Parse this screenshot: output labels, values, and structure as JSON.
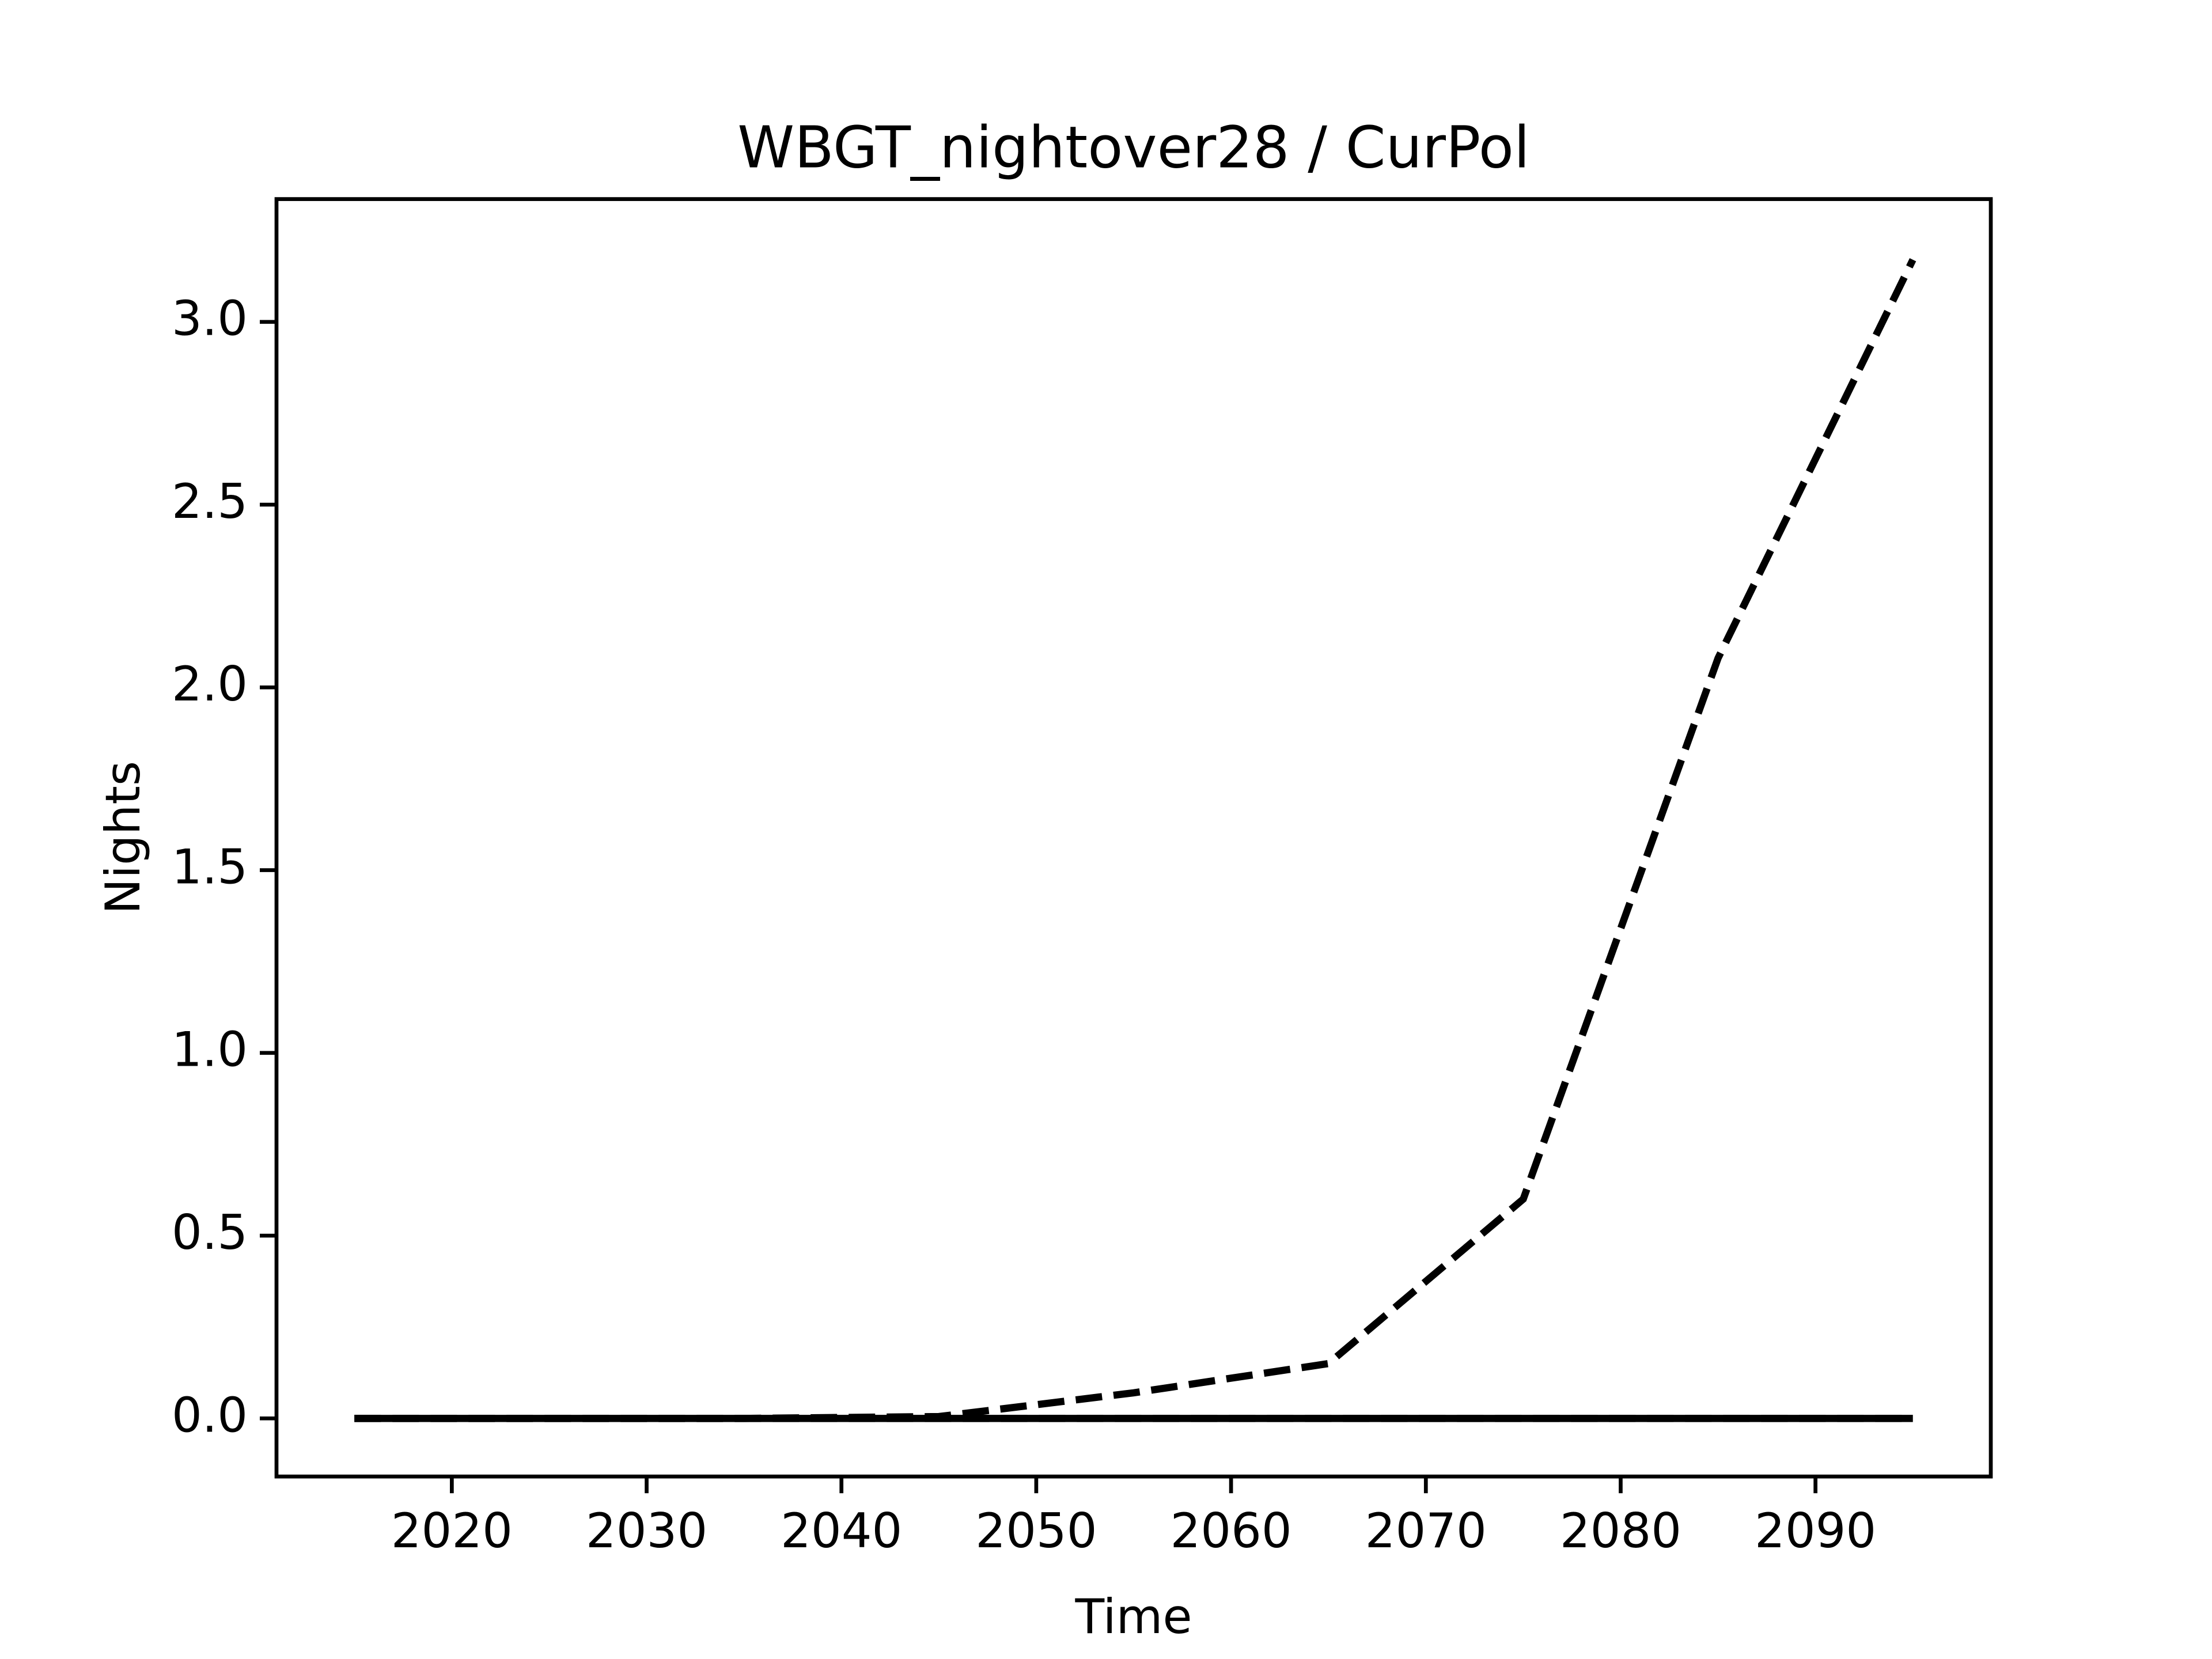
{
  "chart_data": {
    "type": "line",
    "title": "WBGT_nightover28 / CurPol",
    "x_label": "Time",
    "y_label": "Nights",
    "x": [
      2015,
      2025,
      2035,
      2045,
      2055,
      2065,
      2075,
      2085,
      2095
    ],
    "series": [
      {
        "color": "#000000",
        "dash": "dashed",
        "values": [
          0,
          0,
          0,
          0.005,
          0.07,
          0.15,
          0.6,
          2.08,
          3.17
        ]
      },
      {
        "color": "#000000",
        "dash": "solid",
        "values": [
          0,
          0,
          0,
          0,
          0,
          0,
          0,
          0,
          0
        ]
      },
      {
        "color": "#000000",
        "dash": "dashed",
        "values": [
          0,
          0,
          0,
          0,
          0,
          0,
          0,
          0,
          0
        ]
      }
    ],
    "xlim": [
      2011,
      2099
    ],
    "xticks": [
      2020,
      2030,
      2040,
      2050,
      2060,
      2070,
      2080,
      2090
    ],
    "ylim": [
      -0.159,
      3.336
    ],
    "yticks": [
      {
        "value": 0,
        "label": "0.0"
      },
      0.5,
      {
        "value": 1,
        "label": "1.0"
      },
      1.5,
      {
        "value": 2,
        "label": "2.0"
      },
      2.5,
      {
        "value": 3,
        "label": "3.0"
      }
    ],
    "grid": false
  }
}
